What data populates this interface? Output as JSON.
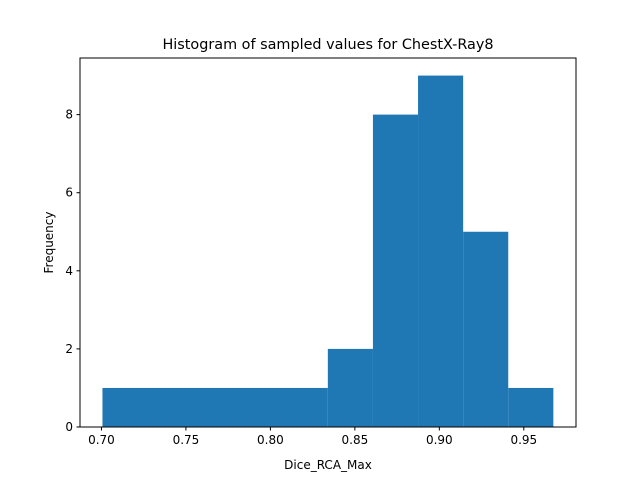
{
  "chart_data": {
    "type": "bar",
    "title": "Histogram of sampled values for ChestX-Ray8",
    "xlabel": "Dice_RCA_Max",
    "ylabel": "Frequency",
    "bins": [
      {
        "x0": 0.7006,
        "x1": 0.834,
        "count": 1
      },
      {
        "x0": 0.834,
        "x1": 0.8607,
        "count": 2
      },
      {
        "x0": 0.8607,
        "x1": 0.8874,
        "count": 8
      },
      {
        "x0": 0.8874,
        "x1": 0.9141,
        "count": 9
      },
      {
        "x0": 0.9141,
        "x1": 0.9408,
        "count": 5
      },
      {
        "x0": 0.9408,
        "x1": 0.9675,
        "count": 1
      }
    ],
    "xlim": [
      0.6873,
      0.9809
    ],
    "ylim": [
      0,
      9.45
    ],
    "xticks": [
      0.7,
      0.75,
      0.8,
      0.85,
      0.9,
      0.95
    ],
    "xtick_labels": [
      "0.70",
      "0.75",
      "0.80",
      "0.85",
      "0.90",
      "0.95"
    ],
    "yticks": [
      0,
      2,
      4,
      6,
      8
    ],
    "ytick_labels": [
      "0",
      "2",
      "4",
      "6",
      "8"
    ],
    "bar_color": "#1f77b4",
    "grid": false,
    "legend": "none"
  }
}
